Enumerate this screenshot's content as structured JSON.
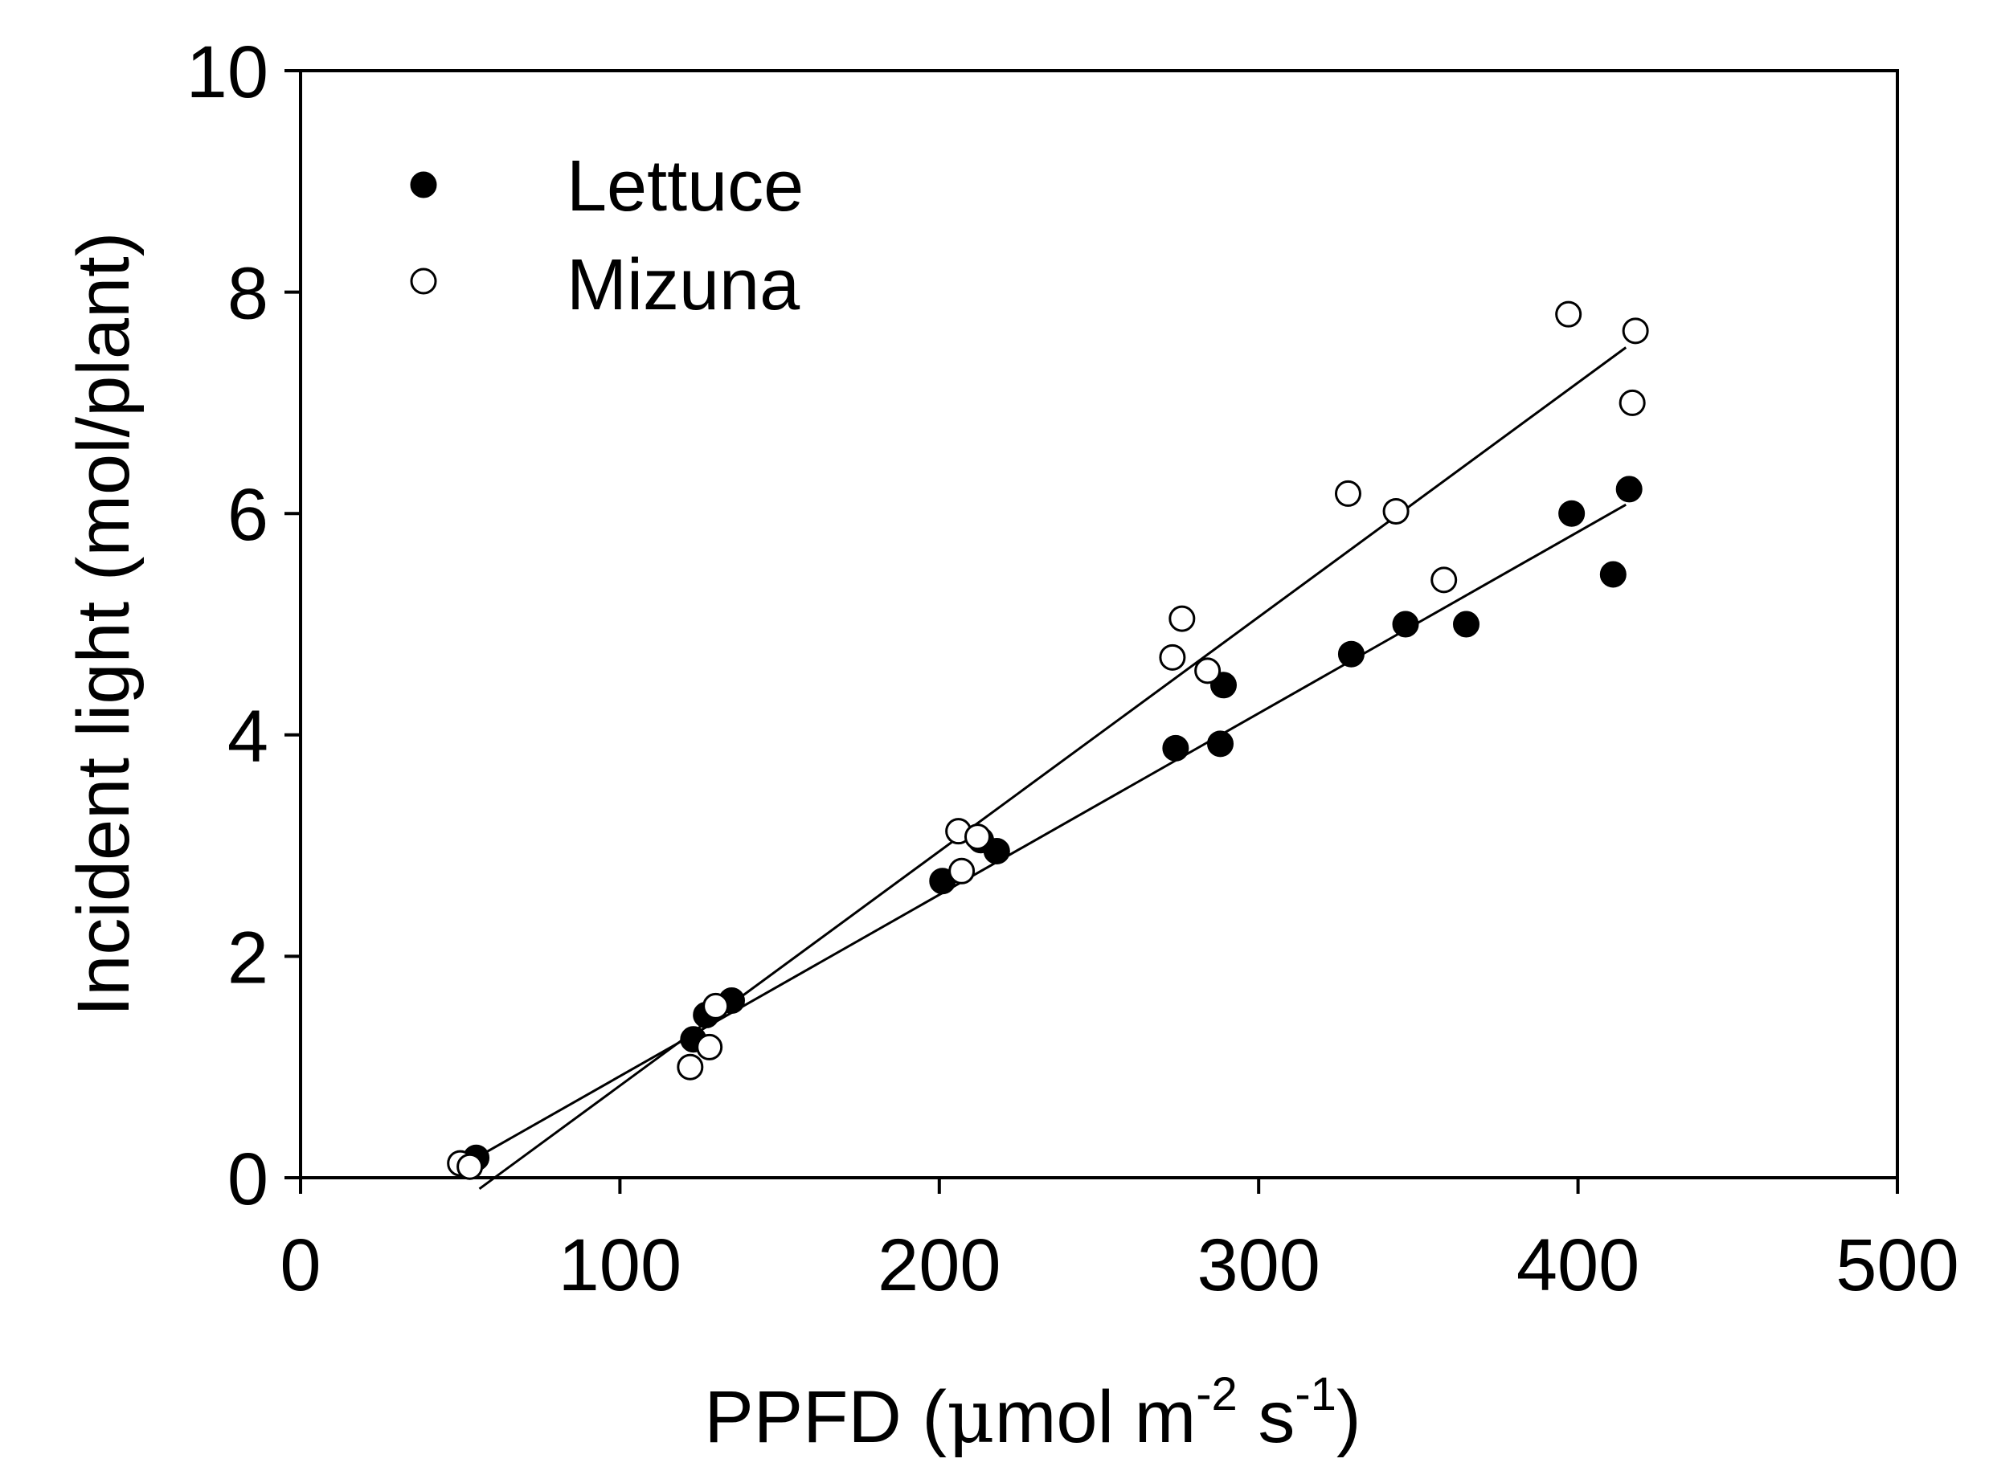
{
  "chart_data": {
    "type": "scatter",
    "title": "",
    "xlabel": {
      "prefix": "PPFD (",
      "mu": "μ",
      "unit_a": "mol m",
      "exp_a": "-2",
      "unit_b": " s",
      "exp_b": "-1",
      "suffix": ")"
    },
    "ylabel": "Incident light (mol/plant)",
    "xlim": [
      0,
      500
    ],
    "ylim": [
      0,
      10
    ],
    "x_ticks": [
      0,
      100,
      200,
      300,
      400,
      500
    ],
    "y_ticks": [
      0,
      2,
      4,
      6,
      8,
      10
    ],
    "legend_position": "top-left",
    "series": [
      {
        "name": "Lettuce",
        "marker": "filled-circle",
        "color": "#000000",
        "points": [
          [
            55,
            0.18
          ],
          [
            123,
            1.25
          ],
          [
            127,
            1.47
          ],
          [
            135,
            1.6
          ],
          [
            201,
            2.68
          ],
          [
            213,
            3.05
          ],
          [
            218,
            2.95
          ],
          [
            274,
            3.88
          ],
          [
            288,
            3.92
          ],
          [
            289,
            4.45
          ],
          [
            329,
            4.73
          ],
          [
            346,
            5.0
          ],
          [
            365,
            5.0
          ],
          [
            398,
            6.0
          ],
          [
            411,
            5.45
          ],
          [
            416,
            6.22
          ]
        ],
        "fit": {
          "x_start": 55,
          "y_start": 0.18,
          "x_end": 415,
          "y_end": 6.08
        }
      },
      {
        "name": "Mizuna",
        "marker": "open-circle",
        "color": "#000000",
        "points": [
          [
            50,
            0.13
          ],
          [
            53,
            0.1
          ],
          [
            122,
            1.0
          ],
          [
            128,
            1.18
          ],
          [
            130,
            1.55
          ],
          [
            206,
            3.13
          ],
          [
            207,
            2.77
          ],
          [
            212,
            3.08
          ],
          [
            273,
            4.7
          ],
          [
            276,
            5.05
          ],
          [
            284,
            4.58
          ],
          [
            328,
            6.18
          ],
          [
            343,
            6.02
          ],
          [
            358,
            5.4
          ],
          [
            397,
            7.8
          ],
          [
            417,
            7.0
          ],
          [
            418,
            7.65
          ]
        ],
        "fit": {
          "x_start": 56,
          "y_start": -0.1,
          "x_end": 415,
          "y_end": 7.5
        }
      }
    ]
  }
}
